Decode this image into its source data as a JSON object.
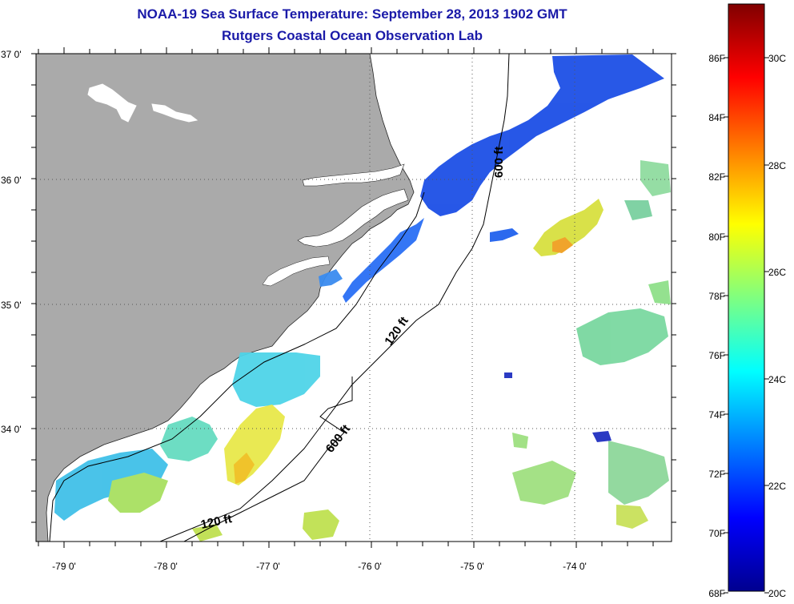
{
  "title": {
    "line1": "NOAA-19 Sea Surface Temperature:  September 28, 2013 1902 GMT",
    "line2": "Rutgers Coastal Ocean Observation Lab"
  },
  "map": {
    "lon_range": [
      -79.3,
      -73.0
    ],
    "lat_range": [
      33.15,
      37.0
    ],
    "lon_ticks": [
      "-79 0'",
      "-78 0'",
      "-77 0'",
      "-76 0'",
      "-75 0'",
      "-74 0'"
    ],
    "lat_ticks": [
      "37 0'",
      "36 0'",
      "35 0'",
      "34 0'"
    ],
    "land_color": "#aaaaaa",
    "gridlines": "dotted"
  },
  "contours": {
    "labels": [
      "120 ft",
      "600 ft",
      "600 ft",
      "120 ft"
    ]
  },
  "colorbar": {
    "min_c": 20,
    "max_c": 31,
    "fahrenheit_labels": [
      "86F",
      "84F",
      "82F",
      "80F",
      "78F",
      "76F",
      "74F",
      "72F",
      "70F",
      "68F"
    ],
    "celsius_labels": [
      "30C",
      "28C",
      "26C",
      "24C",
      "22C",
      "20C"
    ]
  }
}
